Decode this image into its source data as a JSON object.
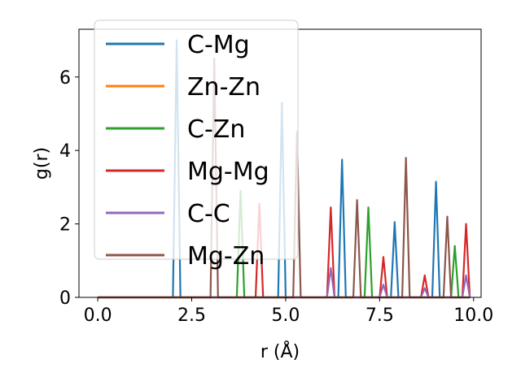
{
  "chart_data": {
    "type": "line",
    "xlabel": "r (Å)",
    "ylabel": "g(r)",
    "xlim": [
      -0.5,
      10.2
    ],
    "ylim": [
      0,
      7.3
    ],
    "xticks": [
      0.0,
      2.5,
      5.0,
      7.5,
      10.0
    ],
    "xtick_labels": [
      "0.0",
      "2.5",
      "5.0",
      "7.5",
      "10.0"
    ],
    "yticks": [
      0,
      2,
      4,
      6
    ],
    "ytick_labels": [
      "0",
      "2",
      "4",
      "6"
    ],
    "grid": false,
    "legend_position": "top-left",
    "peak_half_width": 0.1,
    "x_range": [
      0.0,
      9.9
    ],
    "series": [
      {
        "name": "C-Mg",
        "color": "#1f77b4",
        "peaks": [
          [
            2.1,
            7.0
          ],
          [
            4.9,
            5.3
          ],
          [
            6.5,
            3.75
          ],
          [
            7.9,
            2.05
          ],
          [
            9.0,
            3.15
          ]
        ]
      },
      {
        "name": "Zn-Zn",
        "color": "#ff7f0e",
        "peaks": []
      },
      {
        "name": "C-Zn",
        "color": "#2ca02c",
        "peaks": [
          [
            3.8,
            2.9
          ],
          [
            7.2,
            2.45
          ],
          [
            9.5,
            1.4
          ]
        ]
      },
      {
        "name": "Mg-Mg",
        "color": "#d62728",
        "peaks": [
          [
            4.3,
            2.55
          ],
          [
            6.2,
            2.45
          ],
          [
            7.6,
            1.1
          ],
          [
            8.7,
            0.6
          ],
          [
            9.8,
            2.0
          ]
        ]
      },
      {
        "name": "C-C",
        "color": "#9467bd",
        "peaks": [
          [
            6.2,
            0.8
          ],
          [
            7.6,
            0.35
          ],
          [
            8.7,
            0.25
          ],
          [
            9.8,
            0.6
          ]
        ]
      },
      {
        "name": "Mg-Zn",
        "color": "#8c564b",
        "peaks": [
          [
            3.1,
            6.5
          ],
          [
            5.3,
            4.5
          ],
          [
            6.9,
            2.65
          ],
          [
            8.2,
            3.8
          ],
          [
            9.3,
            2.2
          ]
        ]
      }
    ]
  }
}
